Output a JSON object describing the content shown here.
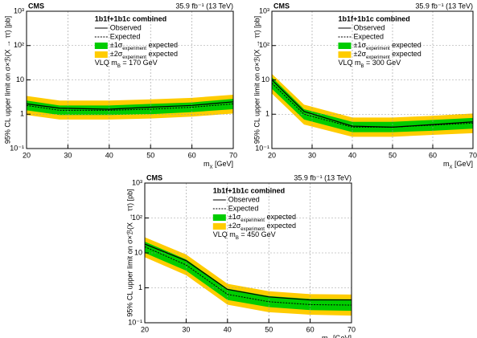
{
  "chart_data": [
    {
      "type": "line",
      "title": "CMS",
      "subtitle": "35.9 fb⁻¹ (13 TeV)",
      "legend_title": "1b1f+1b1c combined",
      "note": {
        "pre": "VLQ m",
        "sub": "B",
        "post": " = 170 GeV"
      },
      "x_label": {
        "pre": "m",
        "sub": "X",
        "post": " [GeV]"
      },
      "y_label": "95% CL upper limit on σ×ℬ(X → ττ) [pb]",
      "x": [
        20,
        28,
        40,
        50,
        60,
        70
      ],
      "series": [
        {
          "name": "Observed",
          "color": "#000000",
          "style": "solid",
          "values": [
            2.0,
            1.5,
            1.4,
            1.6,
            1.8,
            2.3
          ]
        },
        {
          "name": "Expected",
          "color": "#000000",
          "style": "dotted",
          "values": [
            1.8,
            1.3,
            1.3,
            1.4,
            1.6,
            2.0
          ]
        }
      ],
      "bands": [
        {
          "name": {
            "pre": "±1σ",
            "sub": "experiment",
            "post": " expected"
          },
          "color": "#00cc00",
          "low": [
            1.3,
            0.95,
            0.95,
            1.0,
            1.15,
            1.4
          ],
          "high": [
            2.5,
            1.8,
            1.8,
            2.0,
            2.2,
            2.8
          ]
        },
        {
          "name": {
            "pre": "±2σ",
            "sub": "experiment",
            "post": " expected"
          },
          "color": "#ffcc00",
          "low": [
            0.95,
            0.7,
            0.7,
            0.75,
            0.85,
            1.05
          ],
          "high": [
            3.4,
            2.5,
            2.5,
            2.7,
            3.0,
            3.7
          ]
        }
      ],
      "xlim": [
        20,
        70
      ],
      "ylim": [
        0.1,
        1000
      ],
      "xticks": [
        20,
        30,
        40,
        50,
        60,
        70
      ],
      "yticks": [
        {
          "value": 0.1,
          "label": "10⁻¹"
        },
        1,
        10,
        {
          "value": 100,
          "label": "10²"
        },
        {
          "value": 1000,
          "label": "10³"
        }
      ],
      "log_y": true,
      "grid": true
    },
    {
      "type": "line",
      "title": "CMS",
      "subtitle": "35.9 fb⁻¹ (13 TeV)",
      "legend_title": "1b1f+1b1c combined",
      "note": {
        "pre": "VLQ m",
        "sub": "B",
        "post": " = 300 GeV"
      },
      "x_label": {
        "pre": "m",
        "sub": "X",
        "post": " [GeV]"
      },
      "y_label": "95% CL upper limit on σ×ℬ(X → ττ) [pb]",
      "x": [
        20,
        28,
        40,
        50,
        60,
        70
      ],
      "series": [
        {
          "name": "Observed",
          "color": "#000000",
          "style": "solid",
          "values": [
            10,
            1.2,
            0.45,
            0.42,
            0.5,
            0.6
          ]
        },
        {
          "name": "Expected",
          "color": "#000000",
          "style": "dotted",
          "values": [
            8,
            1.0,
            0.42,
            0.42,
            0.48,
            0.55
          ]
        }
      ],
      "bands": [
        {
          "name": {
            "pre": "±1σ",
            "sub": "experiment",
            "post": " expected"
          },
          "color": "#00cc00",
          "low": [
            5.5,
            0.7,
            0.3,
            0.3,
            0.33,
            0.38
          ],
          "high": [
            12,
            1.4,
            0.6,
            0.6,
            0.68,
            0.78
          ]
        },
        {
          "name": {
            "pre": "±2σ",
            "sub": "experiment",
            "post": " expected"
          },
          "color": "#ffcc00",
          "low": [
            4,
            0.5,
            0.22,
            0.22,
            0.25,
            0.28
          ],
          "high": [
            15,
            1.9,
            0.8,
            0.8,
            0.9,
            1.05
          ]
        }
      ],
      "xlim": [
        20,
        70
      ],
      "ylim": [
        0.1,
        1000
      ],
      "xticks": [
        20,
        30,
        40,
        50,
        60,
        70
      ],
      "yticks": [
        {
          "value": 0.1,
          "label": "10⁻¹"
        },
        1,
        10,
        {
          "value": 100,
          "label": "10²"
        },
        {
          "value": 1000,
          "label": "10³"
        }
      ],
      "log_y": true,
      "grid": true
    },
    {
      "type": "line",
      "title": "CMS",
      "subtitle": "35.9 fb⁻¹ (13 TeV)",
      "legend_title": "1b1f+1b1c combined",
      "note": {
        "pre": "VLQ m",
        "sub": "B",
        "post": " = 450 GeV"
      },
      "x_label": {
        "pre": "m",
        "sub": "X",
        "post": " [GeV]"
      },
      "y_label": "95% CL upper limit on σ×ℬ(X → ττ) [pb]",
      "x": [
        20,
        30,
        40,
        50,
        60,
        70
      ],
      "series": [
        {
          "name": "Observed",
          "color": "#000000",
          "style": "solid",
          "values": [
            18,
            6,
            0.9,
            0.55,
            0.45,
            0.45
          ]
        },
        {
          "name": "Expected",
          "color": "#000000",
          "style": "dotted",
          "values": [
            15,
            4.5,
            0.65,
            0.4,
            0.33,
            0.32
          ]
        }
      ],
      "bands": [
        {
          "name": {
            "pre": "±1σ",
            "sub": "experiment",
            "post": " expected"
          },
          "color": "#00cc00",
          "low": [
            10,
            3.1,
            0.45,
            0.28,
            0.23,
            0.22
          ],
          "high": [
            21,
            6.5,
            0.95,
            0.58,
            0.48,
            0.47
          ]
        },
        {
          "name": {
            "pre": "±2σ",
            "sub": "experiment",
            "post": " expected"
          },
          "color": "#ffcc00",
          "low": [
            7.5,
            2.3,
            0.33,
            0.2,
            0.17,
            0.16
          ],
          "high": [
            28,
            9,
            1.3,
            0.8,
            0.66,
            0.64
          ]
        }
      ],
      "xlim": [
        20,
        70
      ],
      "ylim": [
        0.1,
        1000
      ],
      "xticks": [
        20,
        30,
        40,
        50,
        60,
        70
      ],
      "yticks": [
        {
          "value": 0.1,
          "label": "10⁻¹"
        },
        1,
        10,
        {
          "value": 100,
          "label": "10²"
        },
        {
          "value": 1000,
          "label": "10³"
        }
      ],
      "log_y": true,
      "grid": true
    }
  ]
}
